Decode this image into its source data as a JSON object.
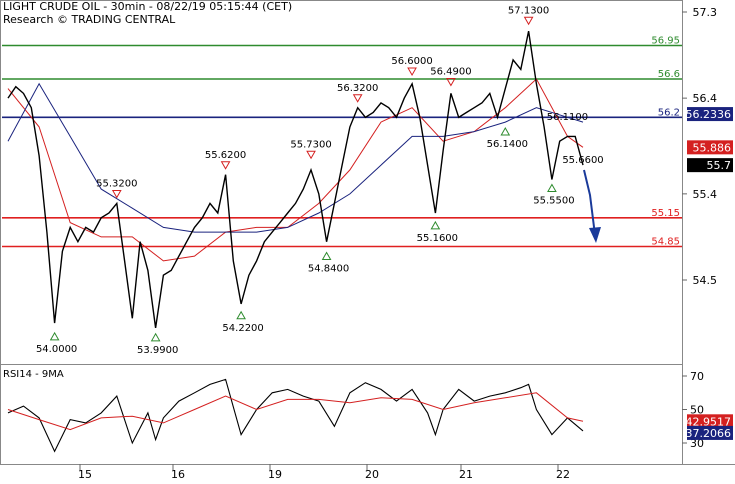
{
  "header": {
    "title": "LIGHT CRUDE OIL - 30min - 08/22/19 05:15:44 (CET)",
    "subtitle": "Research © TRADING CENTRAL"
  },
  "colors": {
    "resistance": "#2e8b2e",
    "support": "#e02020",
    "pivot": "#1a237e",
    "price": "#000000",
    "ma_fast": "#d42020",
    "ma_slow": "#1a237e",
    "arrow": "#1a3a9a",
    "marker_high": "#d42020",
    "marker_low": "#2e8b2e"
  },
  "chart_data": [
    {
      "type": "line",
      "title": "LIGHT CRUDE OIL - 30min",
      "x_ticks": [
        "15",
        "16",
        "19",
        "20",
        "21",
        "22"
      ],
      "y_ticks": [
        "54.5",
        "55.4",
        "56.4",
        "57.3"
      ],
      "ylim": [
        53.8,
        57.35
      ],
      "levels": [
        {
          "label": "56.95",
          "value": 56.95,
          "kind": "resistance"
        },
        {
          "label": "56.6",
          "value": 56.6,
          "kind": "resistance"
        },
        {
          "label": "56.2",
          "value": 56.2,
          "kind": "pivot"
        },
        {
          "label": "55.15",
          "value": 55.15,
          "kind": "support"
        },
        {
          "label": "54.85",
          "value": 54.85,
          "kind": "support"
        }
      ],
      "price_tags": [
        {
          "label": "56.2336",
          "value": 56.2336,
          "kind": "pivot-value"
        },
        {
          "label": "55.886",
          "value": 55.886,
          "kind": "ma-value"
        },
        {
          "label": "55.7",
          "value": 55.7,
          "kind": "last-price"
        }
      ],
      "annotations": [
        {
          "label": "54.0000",
          "x": 6.0,
          "y": 54.0,
          "kind": "low"
        },
        {
          "label": "55.3200",
          "x": 14.0,
          "y": 55.32,
          "kind": "high"
        },
        {
          "label": "53.9900",
          "x": 19.0,
          "y": 53.99,
          "kind": "low"
        },
        {
          "label": "55.6200",
          "x": 28.0,
          "y": 55.62,
          "kind": "high"
        },
        {
          "label": "54.2200",
          "x": 30.0,
          "y": 54.22,
          "kind": "low"
        },
        {
          "label": "55.7300",
          "x": 39.0,
          "y": 55.73,
          "kind": "high"
        },
        {
          "label": "54.8400",
          "x": 41.0,
          "y": 54.84,
          "kind": "low"
        },
        {
          "label": "56.3200",
          "x": 45.0,
          "y": 56.32,
          "kind": "high"
        },
        {
          "label": "56.6000",
          "x": 52.0,
          "y": 56.6,
          "kind": "high"
        },
        {
          "label": "56.4900",
          "x": 57.0,
          "y": 56.49,
          "kind": "high"
        },
        {
          "label": "55.1600",
          "x": 55.0,
          "y": 55.16,
          "kind": "low"
        },
        {
          "label": "56.1400",
          "x": 64.0,
          "y": 56.14,
          "kind": "low"
        },
        {
          "label": "57.1300",
          "x": 67.0,
          "y": 57.13,
          "kind": "high"
        },
        {
          "label": "56.1100",
          "x": 72.0,
          "y": 56.11,
          "kind": "level"
        },
        {
          "label": "55.5500",
          "x": 70.0,
          "y": 55.55,
          "kind": "low"
        },
        {
          "label": "55.6600",
          "x": 74.0,
          "y": 55.66,
          "kind": "level"
        }
      ],
      "series": [
        {
          "kind": "price",
          "x": [
            0,
            1,
            2,
            3,
            4,
            5,
            6,
            7,
            8,
            9,
            10,
            11,
            12,
            13,
            14,
            15,
            16,
            17,
            18,
            19,
            20,
            21,
            22,
            23,
            24,
            25,
            26,
            27,
            28,
            29,
            30,
            31,
            32,
            33,
            34,
            35,
            36,
            37,
            38,
            39,
            40,
            41,
            42,
            43,
            44,
            45,
            46,
            47,
            48,
            49,
            50,
            51,
            52,
            53,
            54,
            55,
            56,
            57,
            58,
            59,
            60,
            61,
            62,
            63,
            64,
            65,
            66,
            67,
            68,
            69,
            70,
            71,
            72,
            73,
            74
          ],
          "values": [
            56.4,
            56.52,
            56.45,
            56.3,
            55.8,
            55.0,
            54.05,
            54.8,
            55.05,
            54.9,
            55.05,
            55.0,
            55.15,
            55.2,
            55.3,
            54.7,
            54.1,
            54.9,
            54.6,
            54.0,
            54.55,
            54.6,
            54.75,
            54.9,
            55.05,
            55.15,
            55.3,
            55.2,
            55.6,
            54.7,
            54.25,
            54.55,
            54.7,
            54.9,
            55.0,
            55.1,
            55.2,
            55.3,
            55.45,
            55.65,
            55.4,
            54.9,
            55.3,
            55.7,
            56.1,
            56.3,
            56.2,
            56.25,
            56.35,
            56.3,
            56.2,
            56.4,
            56.55,
            56.2,
            55.7,
            55.2,
            55.85,
            56.45,
            56.2,
            56.25,
            56.3,
            56.35,
            56.45,
            56.2,
            56.5,
            56.8,
            56.7,
            57.1,
            56.55,
            56.1,
            55.55,
            55.95,
            56.0,
            56.0,
            55.7
          ]
        },
        {
          "kind": "ma-fast",
          "x": [
            0,
            4,
            8,
            12,
            16,
            20,
            24,
            28,
            32,
            36,
            40,
            44,
            48,
            52,
            56,
            60,
            64,
            68,
            72,
            74
          ],
          "values": [
            56.5,
            56.1,
            55.1,
            54.95,
            54.95,
            54.7,
            54.75,
            55.0,
            55.05,
            55.05,
            55.3,
            55.65,
            56.15,
            56.3,
            55.95,
            56.05,
            56.3,
            56.6,
            56.0,
            55.886
          ]
        },
        {
          "kind": "ma-slow",
          "x": [
            0,
            4,
            8,
            12,
            16,
            20,
            24,
            28,
            32,
            36,
            40,
            44,
            48,
            52,
            56,
            60,
            64,
            68,
            72,
            74
          ],
          "values": [
            55.95,
            56.55,
            56.0,
            55.45,
            55.25,
            55.05,
            55.0,
            55.0,
            55.0,
            55.05,
            55.2,
            55.4,
            55.7,
            56.0,
            56.0,
            56.05,
            56.15,
            56.3,
            56.2,
            56.15
          ]
        }
      ]
    },
    {
      "type": "line",
      "title": "RSI14 - 9MA",
      "y_ticks": [
        "70",
        "50",
        "30"
      ],
      "ylim": [
        20,
        80
      ],
      "price_tags": [
        {
          "label": "42.9517",
          "value": 42.9517,
          "kind": "ma-value"
        },
        {
          "label": "37.2066",
          "value": 37.2066,
          "kind": "rsi-value"
        }
      ],
      "series": [
        {
          "kind": "rsi",
          "x": [
            0,
            2,
            4,
            6,
            8,
            10,
            12,
            14,
            16,
            18,
            19,
            20,
            22,
            24,
            26,
            28,
            30,
            32,
            34,
            36,
            38,
            40,
            42,
            44,
            46,
            48,
            50,
            52,
            54,
            55,
            56,
            58,
            60,
            62,
            64,
            66,
            67,
            68,
            70,
            72,
            74
          ],
          "values": [
            48,
            52,
            45,
            25,
            44,
            42,
            48,
            58,
            30,
            48,
            32,
            45,
            55,
            60,
            65,
            68,
            35,
            50,
            60,
            62,
            58,
            55,
            40,
            60,
            66,
            62,
            55,
            62,
            48,
            35,
            50,
            62,
            55,
            58,
            60,
            63,
            65,
            50,
            35,
            45,
            37.2066
          ]
        },
        {
          "kind": "ma",
          "x": [
            0,
            4,
            8,
            12,
            16,
            20,
            24,
            28,
            32,
            36,
            40,
            44,
            48,
            52,
            56,
            60,
            64,
            68,
            72,
            74
          ],
          "values": [
            50,
            44,
            38,
            45,
            46,
            42,
            50,
            58,
            50,
            56,
            56,
            54,
            57,
            56,
            50,
            54,
            57,
            60,
            45,
            42.9517
          ]
        }
      ]
    }
  ]
}
